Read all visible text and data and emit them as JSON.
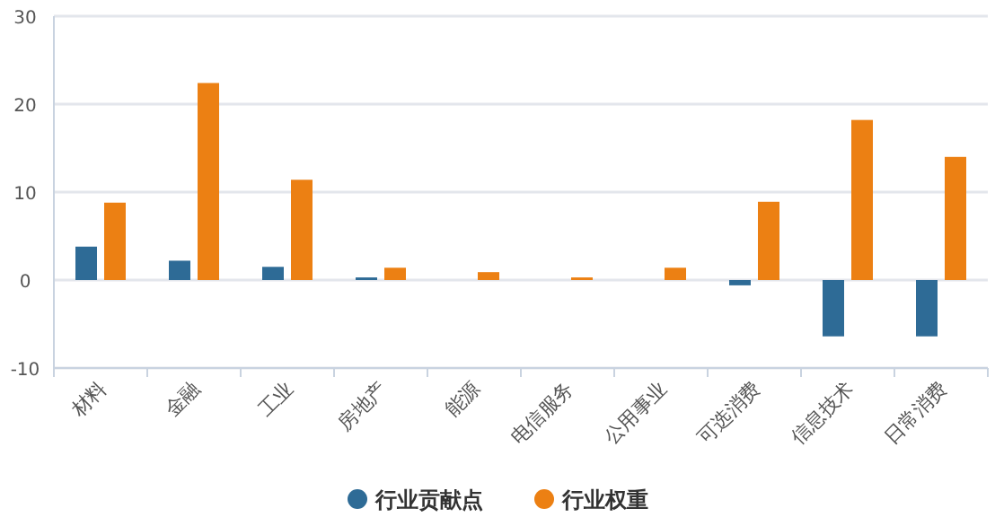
{
  "chart_data": {
    "type": "bar",
    "categories": [
      "材料",
      "金融",
      "工业",
      "房地产",
      "能源",
      "电信服务",
      "公用事业",
      "可选消费",
      "信息技术",
      "日常消费"
    ],
    "series": [
      {
        "name": "行业贡献点",
        "color": "#2e6b96",
        "values": [
          3.8,
          2.2,
          1.5,
          0.3,
          0,
          0,
          0,
          -0.6,
          -6.4,
          -6.4
        ]
      },
      {
        "name": "行业权重",
        "color": "#ec8013",
        "values": [
          8.8,
          22.4,
          11.4,
          1.4,
          0.9,
          0.3,
          1.4,
          8.9,
          18.2,
          14.0
        ]
      }
    ],
    "ylim": [
      -10,
      30
    ],
    "yticks": [
      -10,
      0,
      10,
      20,
      30
    ],
    "grid": "y",
    "legend": "bottom"
  }
}
